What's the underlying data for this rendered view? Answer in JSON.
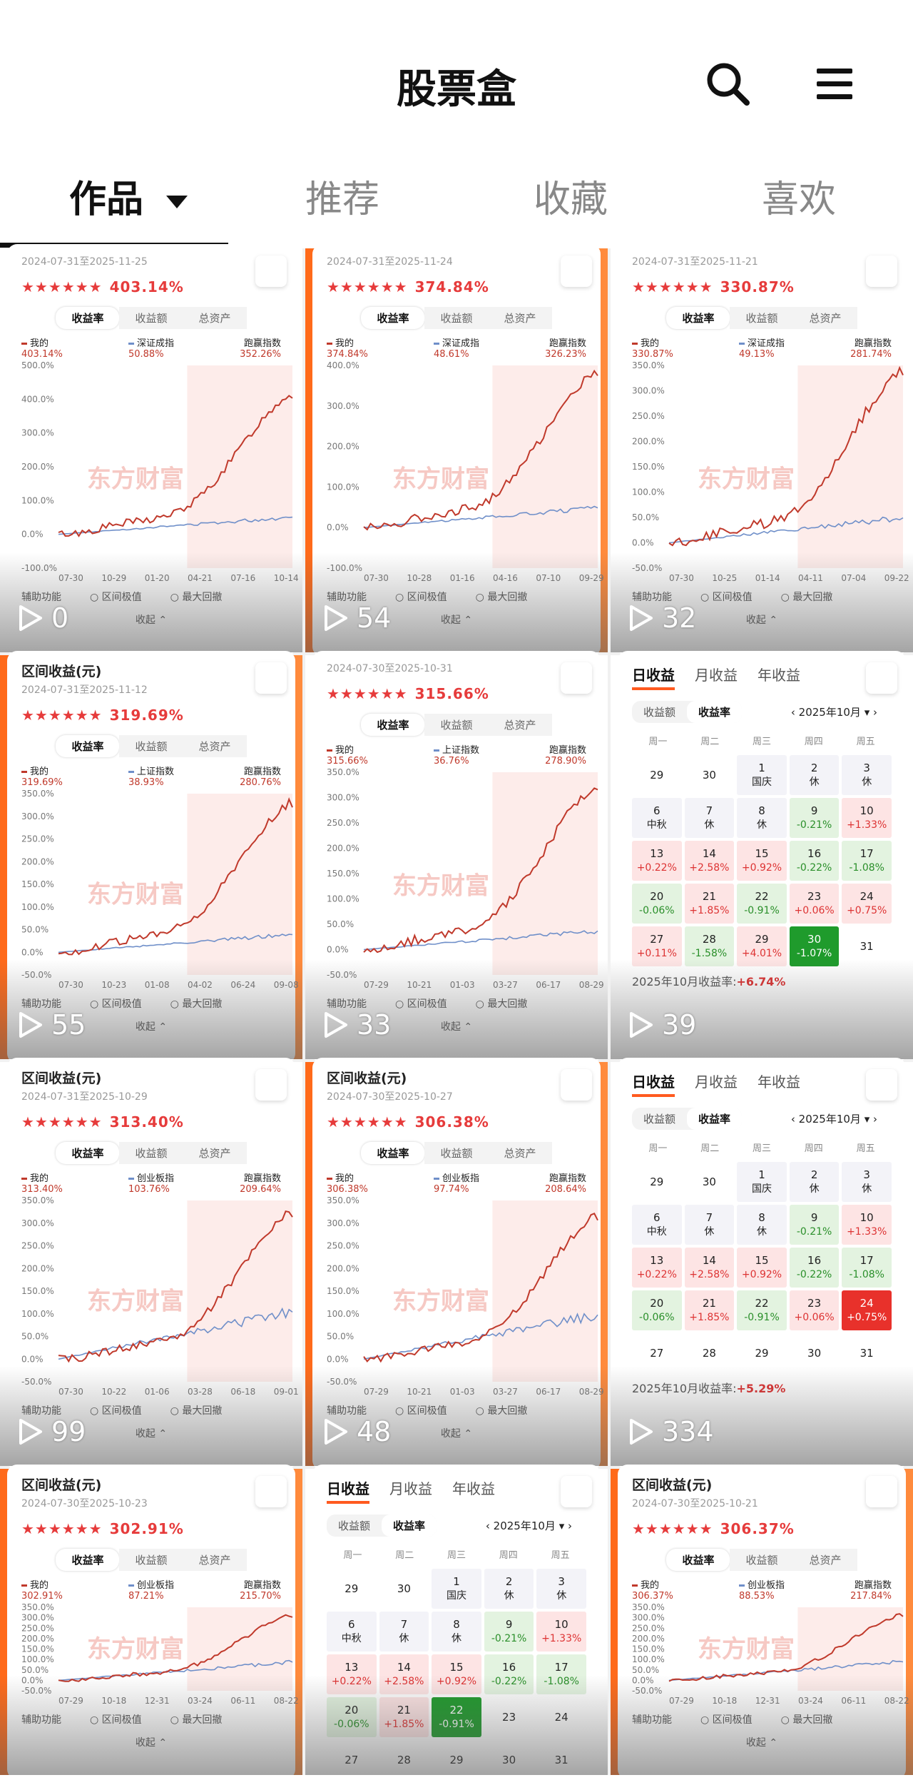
{
  "header": {
    "title": "股票盒"
  },
  "tabs": [
    {
      "label": "作品",
      "active": true
    },
    {
      "label": "推荐"
    },
    {
      "label": "收藏"
    },
    {
      "label": "喜欢"
    }
  ],
  "chart_common": {
    "toggle": [
      "收益率",
      "收益额",
      "总资产"
    ],
    "mine_label": "我的",
    "beat_label": "跑赢指数",
    "aux_label": "辅助功能",
    "range_label": "区间极值",
    "drawdown_label": "最大回撤",
    "collapse_label": "收起",
    "interval_title": "区间收益(元)",
    "watermark": "东方财富",
    "stars": "★★★★★★"
  },
  "cards": [
    {
      "kind": "chart",
      "date": "2024-07-31至2025-11-25",
      "ret": "403.14%",
      "idx_name": "深证成指",
      "idx": "50.88%",
      "beat": "352.26%",
      "views": "0",
      "y_ticks": [
        "500.0%",
        "400.0%",
        "300.0%",
        "200.0%",
        "100.0%",
        "0.0%",
        "-100.0%"
      ],
      "x_ticks": [
        "07-30",
        "10-29",
        "01-20",
        "04-21",
        "07-16",
        "10-14"
      ]
    },
    {
      "kind": "chart",
      "date": "2024-07-31至2025-11-24",
      "ret": "374.84%",
      "idx_name": "深证成指",
      "idx": "48.61%",
      "beat": "326.23%",
      "views": "54",
      "y_ticks": [
        "400.0%",
        "300.0%",
        "200.0%",
        "100.0%",
        "0.0%",
        "-100.0%"
      ],
      "x_ticks": [
        "07-30",
        "10-28",
        "01-16",
        "04-16",
        "07-10",
        "09-29"
      ]
    },
    {
      "kind": "chart",
      "date": "2024-07-31至2025-11-21",
      "ret": "330.87%",
      "idx_name": "深证成指",
      "idx": "49.13%",
      "beat": "281.74%",
      "views": "32",
      "y_ticks": [
        "350.0%",
        "300.0%",
        "250.0%",
        "200.0%",
        "150.0%",
        "100.0%",
        "50.0%",
        "0.0%",
        "-50.0%"
      ],
      "x_ticks": [
        "07-30",
        "10-25",
        "01-14",
        "04-11",
        "07-04",
        "09-22"
      ]
    },
    {
      "kind": "chart",
      "title": true,
      "date": "2024-07-31至2025-11-12",
      "ret": "319.69%",
      "idx_name": "上证指数",
      "idx": "38.93%",
      "beat": "280.76%",
      "views": "55",
      "y_ticks": [
        "350.0%",
        "300.0%",
        "250.0%",
        "200.0%",
        "150.0%",
        "100.0%",
        "50.0%",
        "0.0%",
        "-50.0%"
      ],
      "x_ticks": [
        "07-30",
        "10-23",
        "01-08",
        "04-02",
        "06-24",
        "09-08"
      ]
    },
    {
      "kind": "chart",
      "date": "2024-07-30至2025-10-31",
      "ret": "315.66%",
      "idx_name": "上证指数",
      "idx": "36.76%",
      "beat": "278.90%",
      "views": "33",
      "y_ticks": [
        "350.0%",
        "300.0%",
        "250.0%",
        "200.0%",
        "150.0%",
        "100.0%",
        "50.0%",
        "0.0%",
        "-50.0%"
      ],
      "x_ticks": [
        "07-29",
        "10-21",
        "01-03",
        "03-27",
        "06-17",
        "08-29"
      ]
    },
    {
      "kind": "cal",
      "views": "39",
      "month": "2025年10月",
      "sum_label": "2025年10月收益率:",
      "sum": "+6.74%",
      "highlight": 30,
      "last": 31
    },
    {
      "kind": "chart",
      "title": true,
      "date": "2024-07-31至2025-10-29",
      "ret": "313.40%",
      "idx_name": "创业板指",
      "idx": "103.76%",
      "beat": "209.64%",
      "views": "99",
      "y_ticks": [
        "350.0%",
        "300.0%",
        "250.0%",
        "200.0%",
        "150.0%",
        "100.0%",
        "50.0%",
        "0.0%",
        "-50.0%"
      ],
      "x_ticks": [
        "07-30",
        "10-22",
        "01-06",
        "03-28",
        "06-18",
        "09-01"
      ]
    },
    {
      "kind": "chart",
      "title": true,
      "date": "2024-07-30至2025-10-27",
      "ret": "306.38%",
      "idx_name": "创业板指",
      "idx": "97.74%",
      "beat": "208.64%",
      "views": "48",
      "y_ticks": [
        "350.0%",
        "300.0%",
        "250.0%",
        "200.0%",
        "150.0%",
        "100.0%",
        "50.0%",
        "0.0%",
        "-50.0%"
      ],
      "x_ticks": [
        "07-29",
        "10-21",
        "01-03",
        "03-27",
        "06-17",
        "08-29"
      ]
    },
    {
      "kind": "cal",
      "views": "334",
      "month": "2025年10月",
      "sum_label": "2025年10月收益率:",
      "sum": "+5.29%",
      "highlight": 24,
      "last": 31
    },
    {
      "kind": "chart",
      "title": true,
      "date": "2024-07-30至2025-10-23",
      "ret": "302.91%",
      "idx_name": "创业板指",
      "idx": "87.21%",
      "beat": "215.70%",
      "views": "",
      "y_ticks": [
        "350.0%",
        "300.0%",
        "250.0%",
        "200.0%",
        "150.0%",
        "100.0%",
        "50.0%",
        "0.0%",
        "-50.0%"
      ],
      "x_ticks": [
        "07-29",
        "10-18",
        "12-31",
        "03-24",
        "06-11",
        "08-22"
      ]
    },
    {
      "kind": "cal",
      "views": "",
      "month": "2025年10月",
      "sum_label": "",
      "sum": "",
      "highlight": 22,
      "last": 31
    },
    {
      "kind": "chart",
      "title": true,
      "date": "2024-07-30至2025-10-21",
      "ret": "306.37%",
      "idx_name": "创业板指",
      "idx": "88.53%",
      "beat": "217.84%",
      "views": "",
      "y_ticks": [
        "350.0%",
        "300.0%",
        "250.0%",
        "200.0%",
        "150.0%",
        "100.0%",
        "50.0%",
        "0.0%",
        "-50.0%"
      ],
      "x_ticks": [
        "07-29",
        "10-18",
        "12-31",
        "03-24",
        "06-11",
        "08-22"
      ]
    }
  ],
  "calendar": {
    "tabs": [
      "日收益",
      "月收益",
      "年收益"
    ],
    "seg": [
      "收益额",
      "收益率"
    ],
    "weekdays": [
      "周一",
      "周二",
      "周三",
      "周四",
      "周五"
    ],
    "days": [
      {
        "d": "29",
        "t": "blank"
      },
      {
        "d": "30",
        "t": "blank"
      },
      {
        "d": "1",
        "r": "国庆",
        "t": "hol"
      },
      {
        "d": "2",
        "r": "休",
        "t": "hol"
      },
      {
        "d": "3",
        "r": "休",
        "t": "hol"
      },
      {
        "d": "6",
        "r": "中秋",
        "t": "hol"
      },
      {
        "d": "7",
        "r": "休",
        "t": "hol"
      },
      {
        "d": "8",
        "r": "休",
        "t": "hol"
      },
      {
        "d": "9",
        "r": "-0.21%",
        "t": "down"
      },
      {
        "d": "10",
        "r": "+1.33%",
        "t": "up"
      },
      {
        "d": "13",
        "r": "+0.22%",
        "t": "up"
      },
      {
        "d": "14",
        "r": "+2.58%",
        "t": "up"
      },
      {
        "d": "15",
        "r": "+0.92%",
        "t": "up"
      },
      {
        "d": "16",
        "r": "-0.22%",
        "t": "down"
      },
      {
        "d": "17",
        "r": "-1.08%",
        "t": "down"
      },
      {
        "d": "20",
        "r": "-0.06%",
        "t": "down"
      },
      {
        "d": "21",
        "r": "+1.85%",
        "t": "up"
      },
      {
        "d": "22",
        "r": "-0.91%",
        "t": "down"
      },
      {
        "d": "23",
        "r": "+0.06%",
        "t": "up"
      },
      {
        "d": "24",
        "r": "+0.75%",
        "t": "up"
      },
      {
        "d": "27",
        "r": "+0.11%",
        "t": "up"
      },
      {
        "d": "28",
        "r": "-1.58%",
        "t": "down"
      },
      {
        "d": "29",
        "r": "+4.01%",
        "t": "up"
      },
      {
        "d": "30",
        "r": "-1.07%",
        "t": "down"
      },
      {
        "d": "31",
        "t": "blank"
      }
    ]
  },
  "colors": {
    "accent": "#ff6a1a",
    "up": "#d33",
    "down": "#2a8f2a",
    "mine": "#c0392b",
    "index": "#6f8fc9"
  }
}
